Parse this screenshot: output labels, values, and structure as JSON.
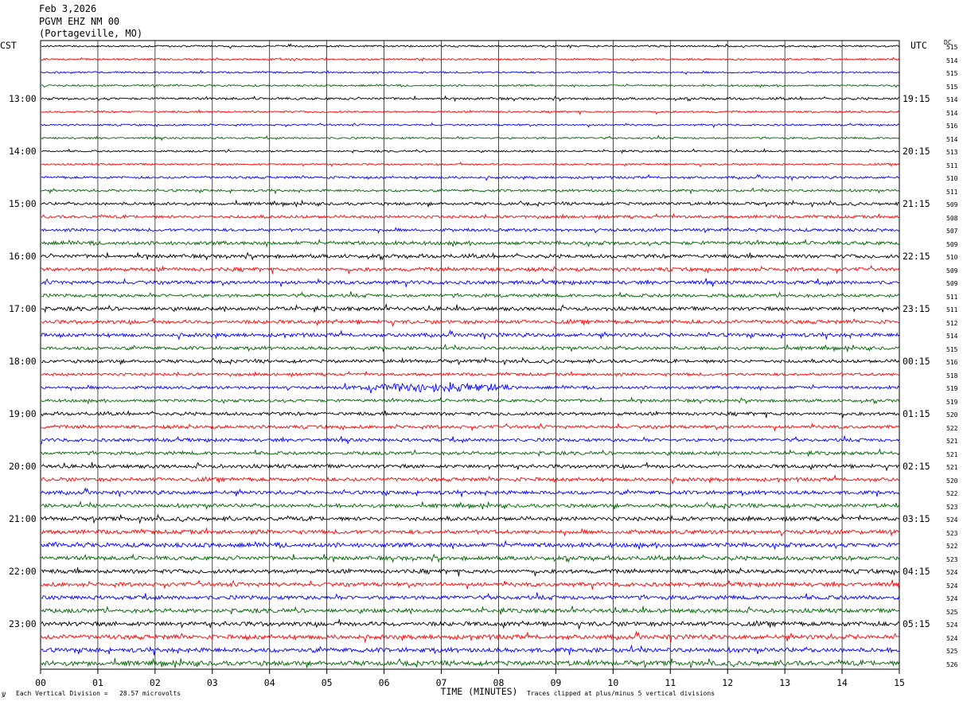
{
  "header": {
    "date": "Feb 3,2026",
    "station": "PGVM EHZ NM 00",
    "location": "(Portageville, MO)"
  },
  "left_zone_label": "CST",
  "right_zone_label": "UTC",
  "dc_header": "DC",
  "footer": {
    "scale_note": "Each Vertical Division =   28.57 microvolts",
    "clip_note": "Traces clipped at plus/minus 5 vertical divisions",
    "corner_mark": "℣"
  },
  "chart_data": {
    "type": "line",
    "title": "PGVM EHZ NM 00",
    "xlabel": "TIME (MINUTES)",
    "xlim": [
      0,
      15
    ],
    "x_ticks": [
      "00",
      "01",
      "02",
      "03",
      "04",
      "05",
      "06",
      "07",
      "08",
      "09",
      "10",
      "11",
      "12",
      "13",
      "14",
      "15"
    ],
    "grid": true,
    "trace_count": 48,
    "trace_minutes": 15,
    "trace_colors": [
      "#000000",
      "#ff0000",
      "#0000ff",
      "#006400"
    ],
    "left_hour_labels": [
      {
        "trace": 4,
        "label": "13:00"
      },
      {
        "trace": 8,
        "label": "14:00"
      },
      {
        "trace": 12,
        "label": "15:00"
      },
      {
        "trace": 16,
        "label": "16:00"
      },
      {
        "trace": 20,
        "label": "17:00"
      },
      {
        "trace": 24,
        "label": "18:00"
      },
      {
        "trace": 28,
        "label": "19:00"
      },
      {
        "trace": 32,
        "label": "20:00"
      },
      {
        "trace": 36,
        "label": "21:00"
      },
      {
        "trace": 40,
        "label": "22:00"
      },
      {
        "trace": 44,
        "label": "23:00"
      }
    ],
    "right_hour_labels": [
      {
        "trace": 4,
        "label": "19:15"
      },
      {
        "trace": 8,
        "label": "20:15"
      },
      {
        "trace": 12,
        "label": "21:15"
      },
      {
        "trace": 16,
        "label": "22:15"
      },
      {
        "trace": 20,
        "label": "23:15"
      },
      {
        "trace": 24,
        "label": "00:15"
      },
      {
        "trace": 28,
        "label": "01:15"
      },
      {
        "trace": 32,
        "label": "02:15"
      },
      {
        "trace": 36,
        "label": "03:15"
      },
      {
        "trace": 40,
        "label": "04:15"
      },
      {
        "trace": 44,
        "label": "05:15"
      }
    ],
    "dc_offsets": [
      "515",
      "514",
      "515",
      "515",
      "514",
      "514",
      "516",
      "514",
      "513",
      "511",
      "510",
      "511",
      "509",
      "508",
      "507",
      "509",
      "510",
      "509",
      "509",
      "511",
      "511",
      "512",
      "514",
      "515",
      "516",
      "518",
      "519",
      "519",
      "520",
      "522",
      "521",
      "521",
      "521",
      "520",
      "522",
      "523",
      "524",
      "523",
      "522",
      "523",
      "524",
      "524",
      "524",
      "525",
      "524",
      "524",
      "525",
      "526"
    ],
    "trace_noise_amplitude": [
      1,
      1,
      1,
      1,
      1.3,
      1,
      1,
      1,
      1,
      1,
      1.3,
      1.3,
      1.6,
      1.6,
      1.6,
      2,
      2,
      2,
      2,
      1.8,
      2,
      2,
      2,
      1.8,
      1.8,
      1.6,
      1.6,
      1.6,
      1.8,
      1.8,
      1.8,
      1.8,
      2,
      2,
      2,
      2,
      2.2,
      2.2,
      2.4,
      2.2,
      2.2,
      2.2,
      2.2,
      2.2,
      2.4,
      2.4,
      2.4,
      2.6
    ],
    "events": [
      {
        "trace": 26,
        "start_min": 5.2,
        "end_min": 8.2,
        "peak_min": 7.0,
        "amplitude": 6
      }
    ]
  }
}
